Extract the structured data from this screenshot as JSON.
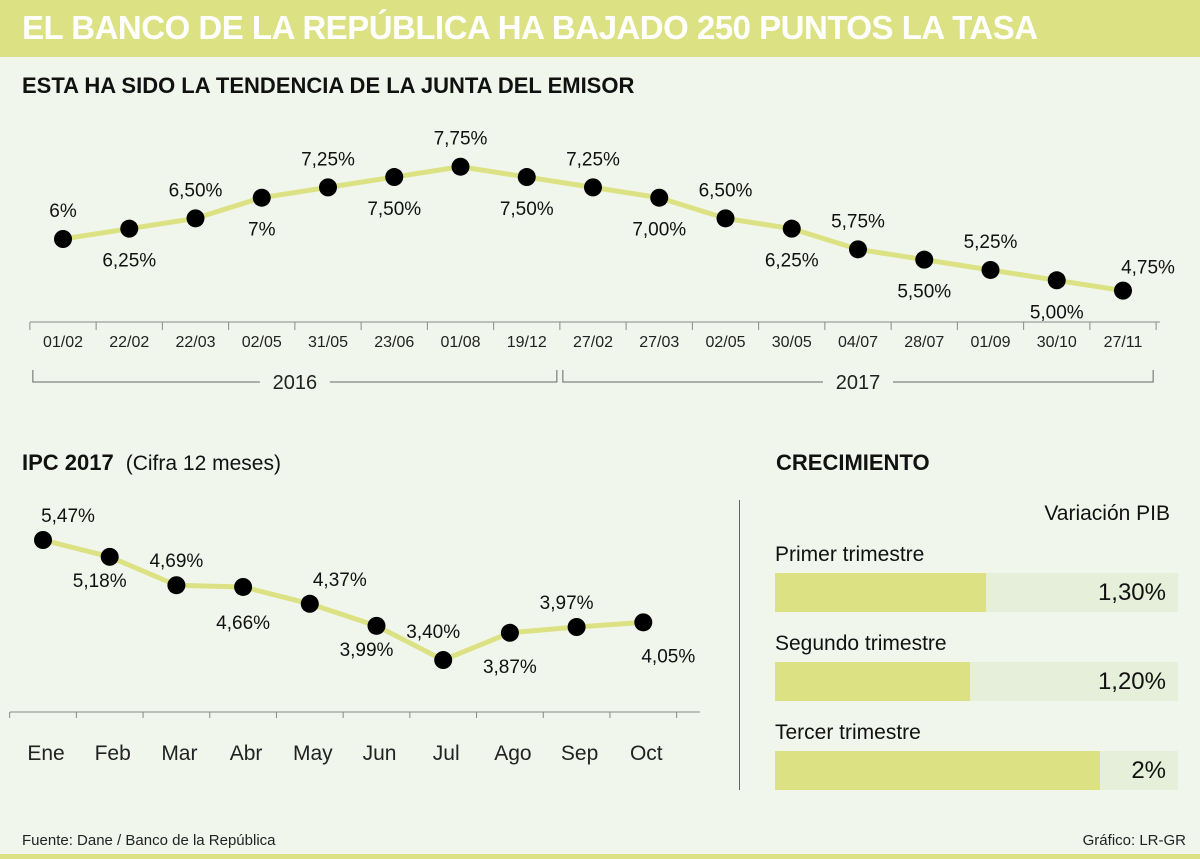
{
  "title": "EL BANCO DE LA REPÚBLICA HA BAJADO 250 PUNTOS LA TASA",
  "colors": {
    "accent": "#dce283",
    "background": "#f1f6ec",
    "track": "#e6efd9",
    "line": "#dce283",
    "point": "#000000"
  },
  "chart_data": [
    {
      "type": "line",
      "title": "ESTA HA SIDO LA TENDENCIA DE LA JUNTA DEL EMISOR",
      "categories": [
        "01/02",
        "22/02",
        "22/03",
        "02/05",
        "31/05",
        "23/06",
        "01/08",
        "19/12",
        "27/02",
        "27/03",
        "02/05",
        "30/05",
        "04/07",
        "28/07",
        "01/09",
        "30/10",
        "27/11"
      ],
      "values": [
        6,
        6.25,
        6.5,
        7,
        7.25,
        7.5,
        7.75,
        7.5,
        7.25,
        7,
        6.5,
        6.25,
        5.75,
        5.5,
        5.25,
        5,
        4.75
      ],
      "labels": [
        "6%",
        "6,25%",
        "6,50%",
        "7%",
        "7,25%",
        "7,50%",
        "7,75%",
        "7,50%",
        "7,25%",
        "7,00%",
        "6,50%",
        "6,25%",
        "5,75%",
        "5,50%",
        "5,25%",
        "5,00%",
        "4,75%"
      ],
      "groups": [
        {
          "label": "2016",
          "from": 0,
          "to": 7
        },
        {
          "label": "2017",
          "from": 8,
          "to": 16
        }
      ],
      "grid": false
    },
    {
      "type": "line",
      "title": "IPC 2017",
      "subtitle": "(Cifra 12 meses)",
      "categories": [
        "Ene",
        "Feb",
        "Mar",
        "Abr",
        "May",
        "Jun",
        "Jul",
        "Ago",
        "Sep",
        "Oct"
      ],
      "values": [
        5.47,
        5.18,
        4.69,
        4.66,
        4.37,
        3.99,
        3.4,
        3.87,
        3.97,
        4.05
      ],
      "labels": [
        "5,47%",
        "5,18%",
        "4,69%",
        "4,66%",
        "4,37%",
        "3,99%",
        "3,40%",
        "3,87%",
        "3,97%",
        "4,05%"
      ],
      "grid": false
    },
    {
      "type": "bar",
      "title": "CRECIMIENTO",
      "series_label": "Variación PIB",
      "categories": [
        "Primer trimestre",
        "Segundo trimestre",
        "Tercer trimestre"
      ],
      "values": [
        1.3,
        1.2,
        2
      ],
      "labels": [
        "1,30%",
        "1,20%",
        "2%"
      ]
    }
  ],
  "source": "Fuente: Dane / Banco de la República",
  "credit": "Gráfico: LR-GR"
}
